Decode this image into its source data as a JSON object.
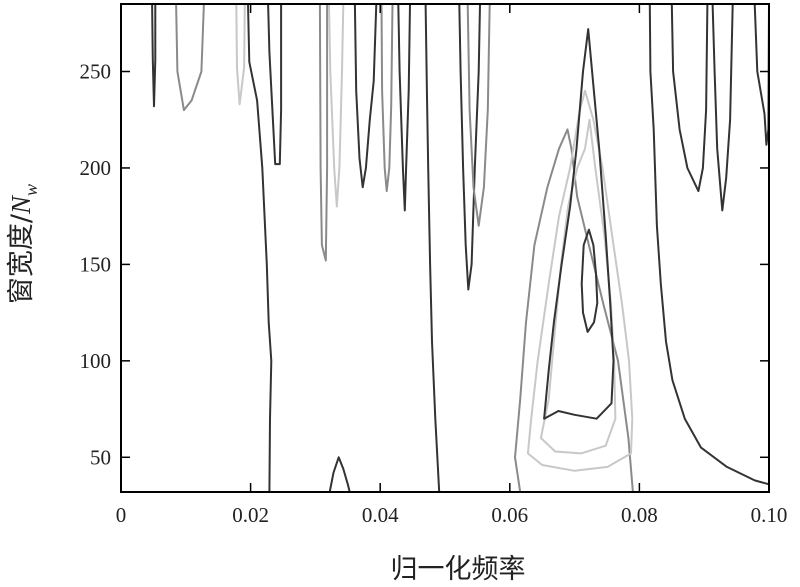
{
  "chart_data": {
    "type": "contour",
    "title": "",
    "xlabel": "归一化频率",
    "ylabel": {
      "main": "窗宽度/",
      "var": "N",
      "sub": "w"
    },
    "xlim": [
      0,
      0.1
    ],
    "ylim": [
      32,
      285
    ],
    "x_ticks": [
      {
        "value": 0,
        "label": "0"
      },
      {
        "value": 0.02,
        "label": "0.02"
      },
      {
        "value": 0.04,
        "label": "0.04"
      },
      {
        "value": 0.06,
        "label": "0.06"
      },
      {
        "value": 0.08,
        "label": "0.08"
      },
      {
        "value": 0.1,
        "label": "0.10"
      }
    ],
    "y_ticks": [
      {
        "value": 50,
        "label": "50"
      },
      {
        "value": 100,
        "label": "100"
      },
      {
        "value": 150,
        "label": "150"
      },
      {
        "value": 200,
        "label": "200"
      },
      {
        "value": 250,
        "label": "250"
      }
    ],
    "grid": false,
    "legend": "none",
    "colors": {
      "dark": "#333333",
      "mid": "#8a8a8a",
      "light": "#c8c8c8",
      "axis": "#000000"
    },
    "contours": [
      {
        "level": "dark",
        "points": [
          [
            0.0048,
            285
          ],
          [
            0.0049,
            256
          ],
          [
            0.0051,
            232
          ],
          [
            0.0053,
            256
          ],
          [
            0.0053,
            285
          ]
        ]
      },
      {
        "level": "mid",
        "points": [
          [
            0.0085,
            285
          ],
          [
            0.0087,
            250
          ],
          [
            0.0097,
            230
          ],
          [
            0.0109,
            235
          ],
          [
            0.0124,
            250
          ],
          [
            0.0128,
            285
          ]
        ]
      },
      {
        "level": "light",
        "points": [
          [
            0.0178,
            285
          ],
          [
            0.0179,
            252
          ],
          [
            0.0183,
            233
          ],
          [
            0.019,
            252
          ],
          [
            0.0191,
            285
          ]
        ]
      },
      {
        "level": "dark",
        "points": [
          [
            0.0196,
            285
          ],
          [
            0.0198,
            255
          ],
          [
            0.021,
            235
          ],
          [
            0.0218,
            200
          ],
          [
            0.0225,
            150
          ],
          [
            0.0228,
            120
          ],
          [
            0.0232,
            100
          ],
          [
            0.023,
            70
          ],
          [
            0.0229,
            32
          ]
        ]
      },
      {
        "level": "dark",
        "points": [
          [
            0.0227,
            285
          ],
          [
            0.0229,
            260
          ],
          [
            0.0238,
            202
          ],
          [
            0.0245,
            202
          ],
          [
            0.0247,
            230
          ],
          [
            0.0247,
            285
          ]
        ]
      },
      {
        "level": "mid",
        "points": [
          [
            0.0307,
            285
          ],
          [
            0.0308,
            200
          ],
          [
            0.031,
            160
          ],
          [
            0.0316,
            152
          ],
          [
            0.0318,
            200
          ],
          [
            0.0318,
            285
          ]
        ]
      },
      {
        "level": "light",
        "points": [
          [
            0.0321,
            285
          ],
          [
            0.0323,
            250
          ],
          [
            0.0329,
            200
          ],
          [
            0.0333,
            180
          ],
          [
            0.0337,
            200
          ],
          [
            0.0341,
            250
          ],
          [
            0.0343,
            285
          ]
        ]
      },
      {
        "level": "dark",
        "points": [
          [
            0.0361,
            285
          ],
          [
            0.0363,
            240
          ],
          [
            0.0368,
            205
          ],
          [
            0.0373,
            190
          ],
          [
            0.0378,
            200
          ],
          [
            0.0384,
            225
          ],
          [
            0.039,
            245
          ],
          [
            0.0394,
            285
          ]
        ]
      },
      {
        "level": "mid",
        "points": [
          [
            0.0402,
            285
          ],
          [
            0.0403,
            240
          ],
          [
            0.0407,
            200
          ],
          [
            0.041,
            188
          ],
          [
            0.0414,
            200
          ],
          [
            0.0417,
            232
          ],
          [
            0.0419,
            285
          ]
        ]
      },
      {
        "level": "dark",
        "points": [
          [
            0.0428,
            285
          ],
          [
            0.043,
            250
          ],
          [
            0.0435,
            200
          ],
          [
            0.0438,
            178
          ],
          [
            0.044,
            200
          ],
          [
            0.0444,
            240
          ],
          [
            0.0446,
            285
          ]
        ]
      },
      {
        "level": "dark",
        "points": [
          [
            0.047,
            285
          ],
          [
            0.0472,
            240
          ],
          [
            0.0474,
            200
          ],
          [
            0.0477,
            150
          ],
          [
            0.048,
            110
          ],
          [
            0.0485,
            70
          ],
          [
            0.0491,
            32
          ]
        ]
      },
      {
        "level": "dark",
        "points": [
          [
            0.0522,
            285
          ],
          [
            0.0524,
            250
          ],
          [
            0.0528,
            200
          ],
          [
            0.0532,
            160
          ],
          [
            0.0536,
            137
          ],
          [
            0.0541,
            150
          ],
          [
            0.0546,
            200
          ],
          [
            0.0552,
            250
          ],
          [
            0.0554,
            285
          ]
        ]
      },
      {
        "level": "mid",
        "points": [
          [
            0.0535,
            285
          ],
          [
            0.0538,
            230
          ],
          [
            0.0544,
            190
          ],
          [
            0.0552,
            170
          ],
          [
            0.056,
            190
          ],
          [
            0.0566,
            230
          ],
          [
            0.0569,
            285
          ]
        ]
      },
      {
        "level": "mid",
        "points": [
          [
            0.0616,
            32
          ],
          [
            0.0608,
            50
          ],
          [
            0.0616,
            80
          ],
          [
            0.0625,
            120
          ],
          [
            0.0638,
            160
          ],
          [
            0.0658,
            190
          ],
          [
            0.0676,
            210
          ],
          [
            0.0689,
            220
          ],
          [
            0.0695,
            210
          ],
          [
            0.0704,
            185
          ],
          [
            0.0722,
            160
          ],
          [
            0.0744,
            130
          ],
          [
            0.0767,
            100
          ],
          [
            0.0783,
            60
          ],
          [
            0.079,
            32
          ]
        ]
      },
      {
        "level": "light",
        "points": [
          [
            0.0648,
            60
          ],
          [
            0.066,
            80
          ],
          [
            0.0668,
            110
          ],
          [
            0.0679,
            150
          ],
          [
            0.069,
            180
          ],
          [
            0.0704,
            200
          ],
          [
            0.0716,
            210
          ],
          [
            0.0723,
            225
          ],
          [
            0.0732,
            200
          ],
          [
            0.0746,
            165
          ],
          [
            0.0756,
            130
          ],
          [
            0.0761,
            100
          ],
          [
            0.0763,
            70
          ],
          [
            0.0748,
            56
          ],
          [
            0.071,
            52
          ],
          [
            0.067,
            53
          ],
          [
            0.0648,
            60
          ]
        ]
      },
      {
        "level": "light",
        "points": [
          [
            0.0628,
            52
          ],
          [
            0.0633,
            70
          ],
          [
            0.0643,
            100
          ],
          [
            0.066,
            140
          ],
          [
            0.0676,
            175
          ],
          [
            0.0693,
            200
          ],
          [
            0.0708,
            230
          ],
          [
            0.0716,
            240
          ],
          [
            0.0729,
            225
          ],
          [
            0.0743,
            200
          ],
          [
            0.076,
            160
          ],
          [
            0.0773,
            130
          ],
          [
            0.0784,
            100
          ],
          [
            0.0789,
            70
          ],
          [
            0.0787,
            52
          ],
          [
            0.0751,
            45
          ],
          [
            0.07,
            43
          ],
          [
            0.065,
            46
          ],
          [
            0.0628,
            52
          ]
        ]
      },
      {
        "level": "dark",
        "points": [
          [
            0.0653,
            70
          ],
          [
            0.066,
            95
          ],
          [
            0.0668,
            120
          ],
          [
            0.068,
            150
          ],
          [
            0.0693,
            180
          ],
          [
            0.0703,
            210
          ],
          [
            0.0713,
            250
          ],
          [
            0.0721,
            272
          ],
          [
            0.0727,
            250
          ],
          [
            0.0738,
            210
          ],
          [
            0.0748,
            165
          ],
          [
            0.0755,
            130
          ],
          [
            0.076,
            100
          ],
          [
            0.0757,
            78
          ],
          [
            0.0734,
            70
          ],
          [
            0.07,
            72
          ],
          [
            0.0675,
            74
          ],
          [
            0.0653,
            70
          ]
        ]
      },
      {
        "level": "dark",
        "points": [
          [
            0.0711,
            140
          ],
          [
            0.0713,
            125
          ],
          [
            0.072,
            115
          ],
          [
            0.073,
            120
          ],
          [
            0.0735,
            130
          ],
          [
            0.0733,
            145
          ],
          [
            0.0729,
            160
          ],
          [
            0.0722,
            168
          ],
          [
            0.0714,
            160
          ],
          [
            0.0711,
            140
          ]
        ]
      },
      {
        "level": "dark",
        "points": [
          [
            0.0816,
            285
          ],
          [
            0.0817,
            250
          ],
          [
            0.0822,
            220
          ],
          [
            0.0827,
            170
          ],
          [
            0.0833,
            140
          ],
          [
            0.0841,
            110
          ],
          [
            0.0851,
            90
          ],
          [
            0.087,
            70
          ],
          [
            0.0895,
            55
          ],
          [
            0.0935,
            45
          ],
          [
            0.0978,
            38
          ],
          [
            0.1,
            36
          ]
        ]
      },
      {
        "level": "dark",
        "points": [
          [
            0.085,
            285
          ],
          [
            0.0852,
            250
          ],
          [
            0.0862,
            220
          ],
          [
            0.0874,
            200
          ],
          [
            0.0891,
            188
          ],
          [
            0.0898,
            200
          ],
          [
            0.0903,
            230
          ],
          [
            0.0905,
            285
          ]
        ]
      },
      {
        "level": "dark",
        "points": [
          [
            0.0913,
            285
          ],
          [
            0.0916,
            250
          ],
          [
            0.092,
            210
          ],
          [
            0.0928,
            178
          ],
          [
            0.0934,
            195
          ],
          [
            0.094,
            225
          ],
          [
            0.0944,
            285
          ]
        ]
      },
      {
        "level": "dark",
        "points": [
          [
            0.0978,
            285
          ],
          [
            0.0982,
            250
          ],
          [
            0.0993,
            228
          ],
          [
            0.0996,
            212
          ],
          [
            0.0999,
            220
          ],
          [
            0.1,
            285
          ]
        ]
      },
      {
        "level": "dark",
        "points": [
          [
            0.0322,
            32
          ],
          [
            0.0328,
            42
          ],
          [
            0.0336,
            50
          ],
          [
            0.0343,
            44
          ],
          [
            0.035,
            36
          ],
          [
            0.0353,
            32
          ]
        ]
      }
    ]
  }
}
